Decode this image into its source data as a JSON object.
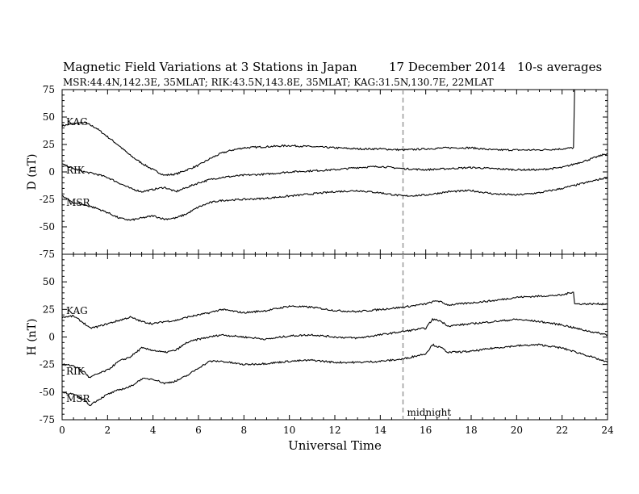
{
  "header": {
    "title": "Magnetic Field Variations at 3 Stations in Japan",
    "date": "17 December 2014",
    "averaging": "10-s averages",
    "stations_line": "MSR:44.4N,142.3E, 35MLAT;  RIK:43.5N,143.8E, 35MLAT;  KAG:31.5N,130.7E, 22MLAT"
  },
  "annotation": {
    "midnight": "midnight",
    "midnight_ut": 15
  },
  "chart_data": [
    {
      "type": "line",
      "panel": "top",
      "ylabel": "D (nT)",
      "ylim": [
        -75,
        75
      ],
      "yticks": [
        -75,
        -50,
        -25,
        0,
        25,
        50,
        75
      ],
      "xlim": [
        0,
        24
      ],
      "xticks": [
        0,
        2,
        4,
        6,
        8,
        10,
        12,
        14,
        16,
        18,
        20,
        22,
        24
      ],
      "grid": false,
      "series": [
        {
          "name": "KAG",
          "x": [
            0,
            0.5,
            1,
            1.5,
            2,
            2.5,
            3,
            3.5,
            4,
            4.5,
            5,
            5.5,
            6,
            6.5,
            7,
            7.5,
            8,
            9,
            10,
            11,
            12,
            13,
            14,
            15,
            16,
            17,
            18,
            19,
            20,
            21,
            22,
            22.5,
            22.55,
            23,
            23.5,
            24
          ],
          "values": [
            42,
            44,
            45,
            40,
            32,
            24,
            15,
            8,
            2,
            -3,
            -2,
            2,
            6,
            12,
            17,
            20,
            22,
            23,
            24,
            23,
            22,
            21,
            21,
            20,
            21,
            22,
            22,
            20,
            20,
            20,
            21,
            22,
            75,
            75,
            75,
            75
          ]
        },
        {
          "name": "RIK",
          "x": [
            0,
            0.5,
            1,
            1.5,
            2,
            2.5,
            3,
            3.5,
            4,
            4.5,
            5,
            5.5,
            6,
            6.5,
            7,
            8,
            9,
            10,
            11,
            12,
            13,
            14,
            15,
            16,
            17,
            18,
            19,
            20,
            21,
            22,
            23,
            24
          ],
          "values": [
            7,
            3,
            0,
            -2,
            -5,
            -10,
            -15,
            -18,
            -16,
            -14,
            -18,
            -14,
            -10,
            -7,
            -5,
            -3,
            -2,
            0,
            1,
            2,
            4,
            5,
            3,
            2,
            3,
            4,
            3,
            2,
            2,
            4,
            10,
            17
          ]
        },
        {
          "name": "MSR",
          "x": [
            0,
            0.5,
            1,
            1.5,
            2,
            2.5,
            3,
            3.5,
            4,
            4.5,
            5,
            5.5,
            6,
            6.5,
            7,
            8,
            9,
            10,
            11,
            12,
            13,
            14,
            15,
            16,
            17,
            18,
            19,
            20,
            21,
            22,
            23,
            24
          ],
          "values": [
            -22,
            -28,
            -30,
            -33,
            -37,
            -42,
            -44,
            -42,
            -40,
            -43,
            -42,
            -38,
            -32,
            -28,
            -26,
            -25,
            -24,
            -22,
            -20,
            -18,
            -17,
            -19,
            -22,
            -21,
            -18,
            -17,
            -20,
            -21,
            -19,
            -15,
            -10,
            -5
          ]
        }
      ],
      "labels": [
        "KAG",
        "RIK",
        "MSR"
      ]
    },
    {
      "type": "line",
      "panel": "bottom",
      "ylabel": "H (nT)",
      "ylim": [
        -75,
        75
      ],
      "yticks": [
        -75,
        -50,
        -25,
        0,
        25,
        50
      ],
      "xlim": [
        0,
        24
      ],
      "xticks": [
        0,
        2,
        4,
        6,
        8,
        10,
        12,
        14,
        16,
        18,
        20,
        22,
        24
      ],
      "xlabel": "Universal Time",
      "grid": false,
      "series": [
        {
          "name": "KAG",
          "x": [
            0,
            0.5,
            1,
            1.2,
            1.5,
            2,
            2.5,
            3,
            3.5,
            4,
            4.5,
            5,
            5.5,
            6,
            6.5,
            7,
            8,
            9,
            10,
            11,
            12,
            13,
            14,
            15,
            16,
            16.5,
            17,
            18,
            19,
            20,
            21,
            22,
            22.5,
            22.55,
            23,
            24
          ],
          "values": [
            18,
            19,
            12,
            8,
            9,
            12,
            15,
            18,
            14,
            12,
            14,
            15,
            18,
            20,
            22,
            25,
            22,
            24,
            28,
            27,
            24,
            23,
            25,
            27,
            30,
            33,
            29,
            31,
            33,
            36,
            37,
            38,
            41,
            30,
            30,
            30
          ]
        },
        {
          "name": "RIK",
          "x": [
            0,
            0.5,
            1,
            1.2,
            1.5,
            2,
            2.5,
            3,
            3.5,
            4,
            4.5,
            5,
            5.5,
            6,
            6.5,
            7,
            8,
            9,
            10,
            11,
            12,
            13,
            14,
            15,
            16,
            16.3,
            16.6,
            17,
            18,
            19,
            20,
            21,
            22,
            23,
            24
          ],
          "values": [
            -25,
            -26,
            -32,
            -37,
            -34,
            -30,
            -22,
            -18,
            -10,
            -12,
            -14,
            -12,
            -5,
            -2,
            0,
            2,
            0,
            -2,
            1,
            2,
            0,
            -1,
            2,
            5,
            8,
            16,
            15,
            10,
            12,
            14,
            16,
            14,
            11,
            6,
            2
          ]
        },
        {
          "name": "MSR",
          "x": [
            0,
            0.5,
            1,
            1.2,
            1.5,
            2,
            2.5,
            3,
            3.5,
            4,
            4.5,
            5,
            5.5,
            6,
            6.5,
            7,
            8,
            9,
            10,
            11,
            12,
            13,
            14,
            15,
            16,
            16.3,
            16.7,
            17,
            18,
            19,
            20,
            21,
            22,
            23,
            24
          ],
          "values": [
            -50,
            -52,
            -57,
            -62,
            -58,
            -52,
            -48,
            -45,
            -38,
            -38,
            -42,
            -40,
            -35,
            -28,
            -22,
            -22,
            -25,
            -24,
            -22,
            -21,
            -23,
            -23,
            -22,
            -20,
            -15,
            -7,
            -10,
            -14,
            -13,
            -10,
            -8,
            -7,
            -10,
            -16,
            -23
          ]
        }
      ],
      "labels": [
        "KAG",
        "RIK",
        "MSR"
      ]
    }
  ]
}
